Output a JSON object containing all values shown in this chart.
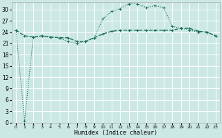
{
  "xlabel": "Humidex (Indice chaleur)",
  "bg_color": "#cce8e4",
  "grid_color": "#ffffff",
  "line_color": "#1a6b5a",
  "xlim": [
    -0.5,
    23.5
  ],
  "ylim": [
    0,
    32
  ],
  "yticks": [
    0,
    3,
    6,
    9,
    12,
    15,
    18,
    21,
    24,
    27,
    30
  ],
  "xticks": [
    0,
    1,
    2,
    3,
    4,
    5,
    6,
    7,
    8,
    9,
    10,
    11,
    12,
    13,
    14,
    15,
    16,
    17,
    18,
    19,
    20,
    21,
    22,
    23
  ],
  "line1_x": [
    0,
    1,
    2,
    3,
    4,
    5,
    6,
    7,
    8,
    9,
    10,
    11,
    12,
    13,
    14,
    15,
    16,
    17,
    18,
    19,
    20,
    21,
    22,
    23
  ],
  "line1_y": [
    24.5,
    23.0,
    22.7,
    23.0,
    22.7,
    22.5,
    22.5,
    21.5,
    21.5,
    22.5,
    23.5,
    24.2,
    24.5,
    24.5,
    24.5,
    24.5,
    24.5,
    24.5,
    24.5,
    25.0,
    25.0,
    24.2,
    24.0,
    23.0
  ],
  "line2_x": [
    0,
    1,
    2,
    3,
    4,
    5,
    6,
    7,
    8,
    9,
    10,
    11,
    12,
    13,
    14,
    15,
    16,
    17,
    18,
    19,
    20,
    21,
    22,
    23
  ],
  "line2_y": [
    24.5,
    0.5,
    22.7,
    23.0,
    22.7,
    22.5,
    21.5,
    21.0,
    21.5,
    22.5,
    27.5,
    29.5,
    30.2,
    31.5,
    31.5,
    30.5,
    31.0,
    30.5,
    25.5,
    25.0,
    24.5,
    24.0,
    24.0,
    23.0
  ]
}
